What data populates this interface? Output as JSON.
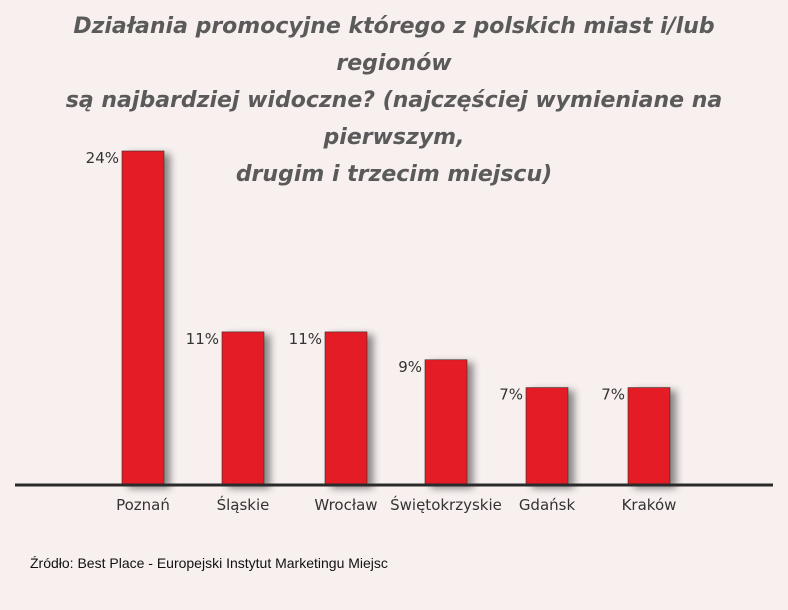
{
  "title_lines": [
    "Działania promocyjne którego z polskich miast i/lub regionów",
    "są najbardziej widoczne? (najczęściej wymieniane na pierwszym,",
    "drugim i trzecim miejscu)"
  ],
  "source": "Źródło: Best Place - Europejski Instytut Marketingu Miejsc",
  "colors": {
    "bar": "#e41e26",
    "bar_shadow": "#c9bcbc",
    "axis": "#2a2a2a",
    "background": "#f7f0ef"
  },
  "chart_data": {
    "type": "bar",
    "title": "Działania promocyjne którego z polskich miast i/lub regionów są najbardziej widoczne? (najczęściej wymieniane na pierwszym, drugim i trzecim miejscu)",
    "categories": [
      "Poznań",
      "Śląskie",
      "Wrocław",
      "Świętokrzyskie",
      "Gdańsk",
      "Kraków"
    ],
    "values": [
      24,
      11,
      11,
      9,
      7,
      7
    ],
    "value_labels": [
      "24%",
      "11%",
      "11%",
      "9%",
      "7%",
      "7%"
    ],
    "unit": "%",
    "xlabel": "",
    "ylabel": "",
    "ylim": [
      0,
      24
    ],
    "grid": false,
    "legend": "none"
  }
}
